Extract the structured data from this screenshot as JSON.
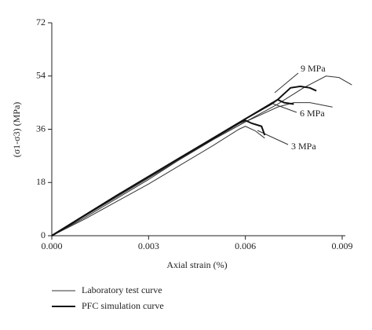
{
  "chart_data": {
    "type": "line",
    "x_label": "Axial strain (%)",
    "y_label": "(σ1-σ3) (MPa)",
    "xlim": [
      0,
      0.009
    ],
    "ylim": [
      0,
      72
    ],
    "xticks": [
      {
        "value": 0,
        "label": "0.000"
      },
      {
        "value": 0.003,
        "label": "0.003"
      },
      {
        "value": 0.006,
        "label": "0.006"
      },
      {
        "value": 0.009,
        "label": "0.009"
      }
    ],
    "yticks": [
      0,
      18,
      36,
      54,
      72
    ],
    "series": [
      {
        "name": "Laboratory test curve",
        "color": "#333333",
        "line_width": 1,
        "curves": [
          {
            "x": [
              0,
              0.001,
              0.002,
              0.003,
              0.004,
              0.005,
              0.0058,
              0.006,
              0.0063,
              0.0066
            ],
            "values": [
              0,
              5.5,
              11.5,
              17.5,
              24,
              30.5,
              36,
              37,
              35.5,
              33
            ]
          },
          {
            "x": [
              0,
              0.001,
              0.002,
              0.003,
              0.004,
              0.005,
              0.006,
              0.007,
              0.0075,
              0.008,
              0.0087
            ],
            "values": [
              0,
              6,
              12.5,
              19,
              26,
              32.5,
              38.5,
              43.5,
              45,
              45,
              43.5
            ]
          },
          {
            "x": [
              0,
              0.001,
              0.002,
              0.003,
              0.004,
              0.005,
              0.006,
              0.007,
              0.0078,
              0.0085,
              0.0089,
              0.0093
            ],
            "values": [
              0,
              6.5,
              13,
              19.5,
              26,
              32.5,
              38.5,
              44.5,
              50,
              54,
              53.5,
              51
            ]
          }
        ]
      },
      {
        "name": "PFC simulation curve",
        "color": "#111111",
        "line_width": 2,
        "curves": [
          {
            "x": [
              0,
              0.002,
              0.004,
              0.0058,
              0.006,
              0.0062,
              0.0065,
              0.0066
            ],
            "values": [
              0,
              13.5,
              26.5,
              38,
              39,
              38,
              37,
              34
            ]
          },
          {
            "x": [
              0,
              0.002,
              0.004,
              0.006,
              0.0068,
              0.007,
              0.0072,
              0.0075
            ],
            "values": [
              0,
              13.5,
              26.5,
              39.5,
              44.5,
              46,
              45,
              44.5
            ]
          },
          {
            "x": [
              0,
              0.002,
              0.004,
              0.006,
              0.007,
              0.0074,
              0.0077,
              0.008,
              0.0082
            ],
            "values": [
              0,
              13.5,
              26.5,
              39.5,
              46,
              50,
              50.5,
              50,
              49
            ]
          }
        ]
      }
    ],
    "annotations": [
      {
        "text": "9 MPa"
      },
      {
        "text": "6 MPa"
      },
      {
        "text": "3 MPa"
      }
    ]
  }
}
